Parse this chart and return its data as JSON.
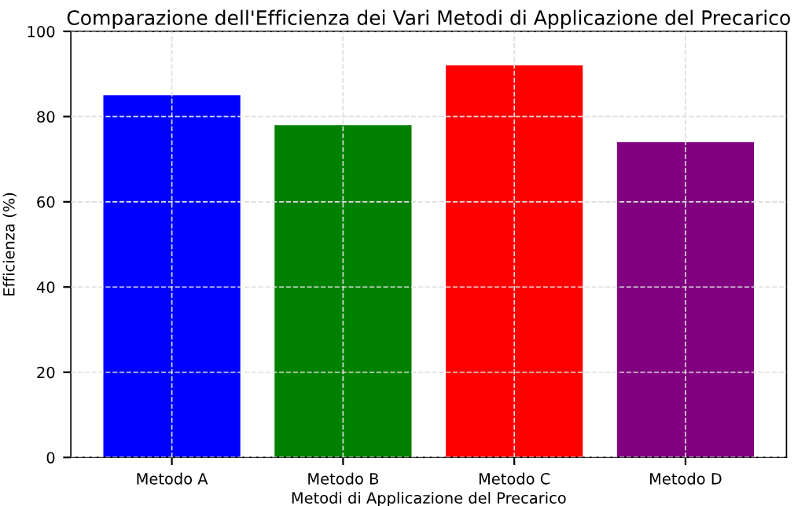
{
  "chart_data": {
    "type": "bar",
    "title": "Comparazione dell'Efficienza dei Vari Metodi di Applicazione del Precarico",
    "xlabel": "Metodi di Applicazione del Precarico",
    "ylabel": "Efficienza (%)",
    "categories": [
      "Metodo A",
      "Metodo B",
      "Metodo C",
      "Metodo D"
    ],
    "values": [
      85,
      78,
      92,
      74
    ],
    "colors": [
      "#0000ff",
      "#008000",
      "#ff0000",
      "#800080"
    ],
    "ylim": [
      0,
      100
    ],
    "yticks": [
      0,
      20,
      40,
      60,
      80,
      100
    ],
    "grid": true,
    "line_style": "dashed"
  }
}
